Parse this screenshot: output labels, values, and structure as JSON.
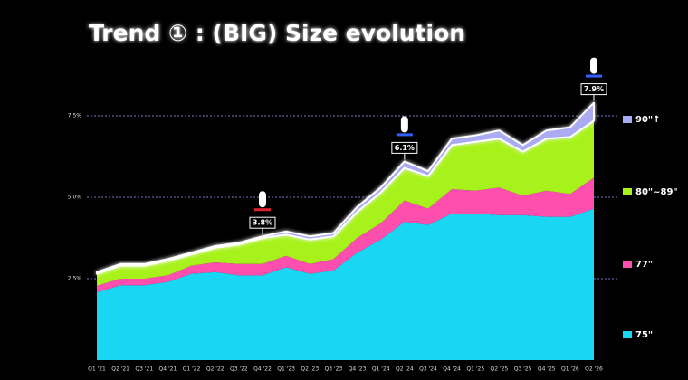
{
  "chart_data": {
    "type": "stacked_area",
    "title": "Trend ① : (BIG) Size evolution",
    "categories": [
      "Q1 '21",
      "Q2 '21",
      "Q3 '21",
      "Q4 '21",
      "Q1 '22",
      "Q2 '22",
      "Q3 '22",
      "Q4 '22",
      "Q1 '23",
      "Q2 '23",
      "Q3 '23",
      "Q4 '23",
      "Q1 '24",
      "Q2 '24",
      "Q3 '24",
      "Q4 '24",
      "Q1 '25",
      "Q2 '25",
      "Q3 '25",
      "Q4 '25",
      "Q1 '26",
      "Q2 '26"
    ],
    "series": [
      {
        "name": "75\"",
        "color": "#19d6f2",
        "values": [
          2.08,
          2.3,
          2.3,
          2.4,
          2.65,
          2.7,
          2.6,
          2.6,
          2.85,
          2.65,
          2.75,
          3.3,
          3.7,
          4.25,
          4.15,
          4.5,
          4.5,
          4.45,
          4.45,
          4.4,
          4.4,
          4.65
        ]
      },
      {
        "name": "77\"",
        "color": "#ff4fae",
        "values": [
          0.2,
          0.2,
          0.2,
          0.2,
          0.25,
          0.3,
          0.35,
          0.35,
          0.35,
          0.3,
          0.35,
          0.45,
          0.5,
          0.65,
          0.5,
          0.75,
          0.7,
          0.85,
          0.6,
          0.8,
          0.7,
          0.95
        ]
      },
      {
        "name": "80\"~89\"",
        "color": "#a8f21c",
        "values": [
          0.37,
          0.4,
          0.4,
          0.45,
          0.35,
          0.45,
          0.6,
          0.8,
          0.65,
          0.75,
          0.7,
          0.8,
          0.95,
          1.0,
          1.0,
          1.35,
          1.5,
          1.5,
          1.35,
          1.6,
          1.75,
          1.75
        ]
      },
      {
        "name": "90\"↑",
        "color": "#ababf3",
        "values": [
          0.05,
          0.05,
          0.05,
          0.05,
          0.05,
          0.05,
          0.05,
          0.05,
          0.1,
          0.1,
          0.1,
          0.15,
          0.15,
          0.2,
          0.15,
          0.2,
          0.2,
          0.25,
          0.2,
          0.25,
          0.3,
          0.55
        ]
      }
    ],
    "ylim": [
      0,
      8.5
    ],
    "yticks": [
      {
        "value": 2.5,
        "label": "2.5%"
      },
      {
        "value": 5.0,
        "label": "5.0%"
      },
      {
        "value": 7.5,
        "label": "7.5%"
      }
    ],
    "grid": true,
    "annotations": [
      {
        "text": "3.8%",
        "x": "Q4 '22",
        "value": 3.8
      },
      {
        "text": "6.1%",
        "x": "Q2 '24",
        "value": 6.1
      },
      {
        "text": "7.9%",
        "x": "Q2 '26",
        "value": 7.9
      }
    ]
  }
}
